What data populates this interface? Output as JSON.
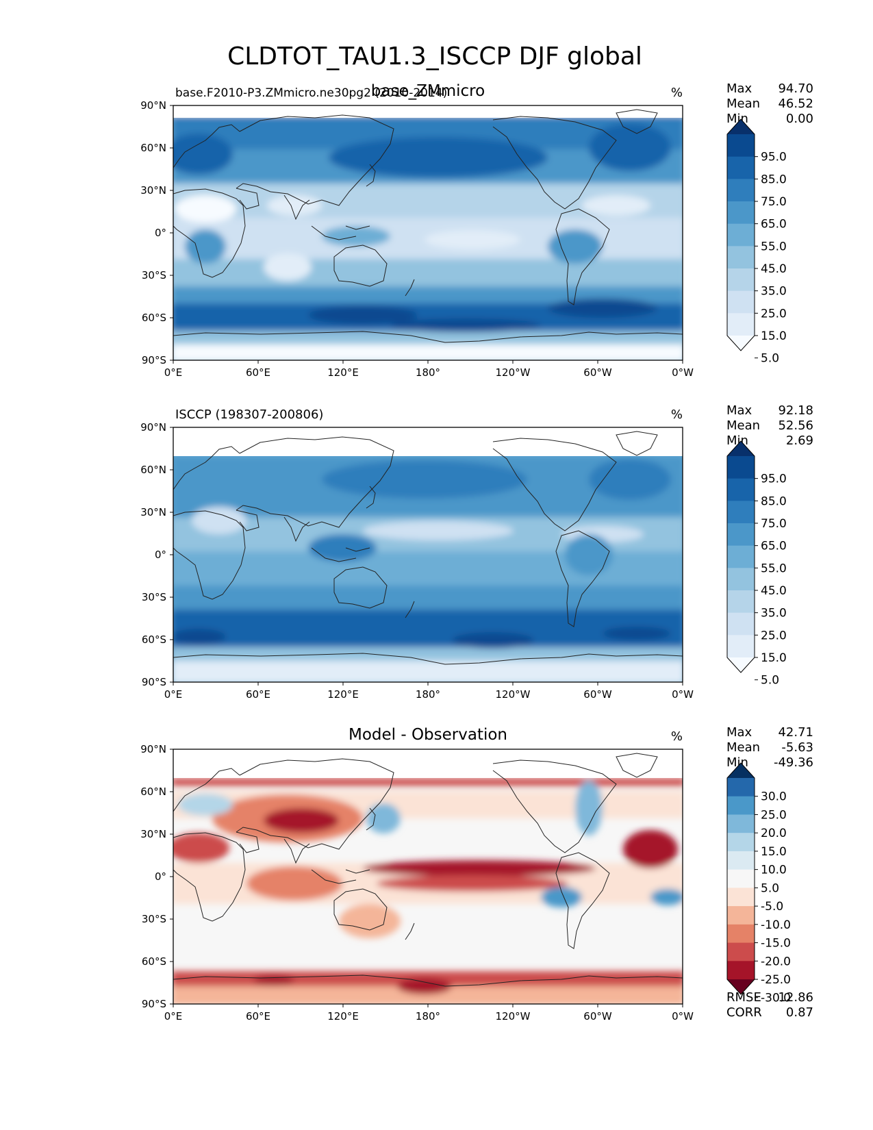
{
  "figure": {
    "title": "CLDTOT_TAU1.3_ISCCP DJF global"
  },
  "axes": {
    "lat_ticks": [
      "90°N",
      "60°N",
      "30°N",
      "0°",
      "30°S",
      "60°S",
      "90°S"
    ],
    "lon_ticks": [
      "0°E",
      "60°E",
      "120°E",
      "180°",
      "120°W",
      "60°W",
      "0°W"
    ]
  },
  "colors": {
    "blues": [
      "#f7fbff",
      "#e2edf8",
      "#cfe1f2",
      "#b5d4e9",
      "#93c3df",
      "#6daed5",
      "#4b97c9",
      "#2f7ebc",
      "#1864aa",
      "#0a4a90",
      "#08306b"
    ],
    "diverging": [
      "#67001f",
      "#a51429",
      "#cc4c4c",
      "#e58267",
      "#f4b599",
      "#fbe3d6",
      "#f7f7f7",
      "#dbeaf2",
      "#b4d6e8",
      "#7fb8da",
      "#4a98c9",
      "#2468ab",
      "#053061"
    ],
    "coast": "#222222"
  },
  "panels": [
    {
      "left_title": "base.F2010-P3.ZMmicro.ne30pg2 (2010-2014)",
      "center_title": "base_ZMmicro",
      "units": "%",
      "stats": {
        "labels": [
          "Max",
          "Mean",
          "Min"
        ],
        "values": [
          "94.70",
          "46.52",
          "0.00"
        ]
      },
      "colorbar": {
        "levels": [
          "95.0",
          "85.0",
          "75.0",
          "65.0",
          "55.0",
          "45.0",
          "35.0",
          "25.0",
          "15.0",
          "5.0"
        ]
      }
    },
    {
      "left_title": "ISCCP (198307-200806)",
      "center_title": "",
      "units": "%",
      "stats": {
        "labels": [
          "Max",
          "Mean",
          "Min"
        ],
        "values": [
          "92.18",
          "52.56",
          "2.69"
        ]
      },
      "colorbar": {
        "levels": [
          "95.0",
          "85.0",
          "75.0",
          "65.0",
          "55.0",
          "45.0",
          "35.0",
          "25.0",
          "15.0",
          "5.0"
        ]
      }
    },
    {
      "left_title": "",
      "center_title": "Model - Observation",
      "units": "%",
      "stats": {
        "labels": [
          "Max",
          "Mean",
          "Min"
        ],
        "values": [
          "42.71",
          "-5.63",
          "-49.36"
        ]
      },
      "colorbar": {
        "levels": [
          "30.0",
          "25.0",
          "20.0",
          "15.0",
          "10.0",
          "5.0",
          "-5.0",
          "-10.0",
          "-15.0",
          "-20.0",
          "-25.0",
          "-30.0"
        ]
      },
      "extra_stats": {
        "labels": [
          "RMSE",
          "CORR"
        ],
        "values": [
          "12.86",
          "0.87"
        ]
      }
    }
  ],
  "chart_data": [
    {
      "type": "heatmap",
      "title": "base.F2010-P3.ZMmicro.ne30pg2 (2010-2014)",
      "units": "%",
      "x_range": [
        0,
        360
      ],
      "y_range": [
        -90,
        90
      ],
      "zonal_bands_lat": [
        80,
        70,
        60,
        50,
        40,
        30,
        20,
        10,
        0,
        -10,
        -20,
        -30,
        -40,
        -50,
        -60,
        -70,
        -80
      ],
      "zonal_mean_values": [
        62,
        65,
        72,
        70,
        60,
        45,
        35,
        38,
        40,
        42,
        45,
        60,
        75,
        85,
        78,
        55,
        5
      ],
      "max": 94.7,
      "mean": 46.52,
      "min": 0.0
    },
    {
      "type": "heatmap",
      "title": "ISCCP (198307-200806)",
      "units": "%",
      "x_range": [
        0,
        360
      ],
      "y_range": [
        -90,
        90
      ],
      "zonal_bands_lat": [
        80,
        70,
        60,
        50,
        40,
        30,
        20,
        10,
        0,
        -10,
        -20,
        -30,
        -40,
        -50,
        -60,
        -70,
        -80
      ],
      "zonal_mean_values": [
        null,
        62,
        70,
        68,
        62,
        52,
        45,
        48,
        55,
        55,
        55,
        62,
        75,
        85,
        80,
        55,
        22
      ],
      "max": 92.18,
      "mean": 52.56,
      "min": 2.69
    },
    {
      "type": "heatmap",
      "title": "Model - Observation",
      "units": "%",
      "x_range": [
        0,
        360
      ],
      "y_range": [
        -90,
        90
      ],
      "zonal_bands_lat": [
        80,
        70,
        60,
        50,
        40,
        30,
        20,
        10,
        0,
        -10,
        -20,
        -30,
        -40,
        -50,
        -60,
        -70,
        -80
      ],
      "zonal_mean_values": [
        null,
        -8,
        2,
        0,
        -5,
        -12,
        -12,
        -10,
        -15,
        -12,
        -8,
        -2,
        0,
        0,
        -2,
        -10,
        -18
      ],
      "max": 42.71,
      "mean": -5.63,
      "min": -49.36,
      "rmse": 12.86,
      "corr": 0.87
    }
  ]
}
